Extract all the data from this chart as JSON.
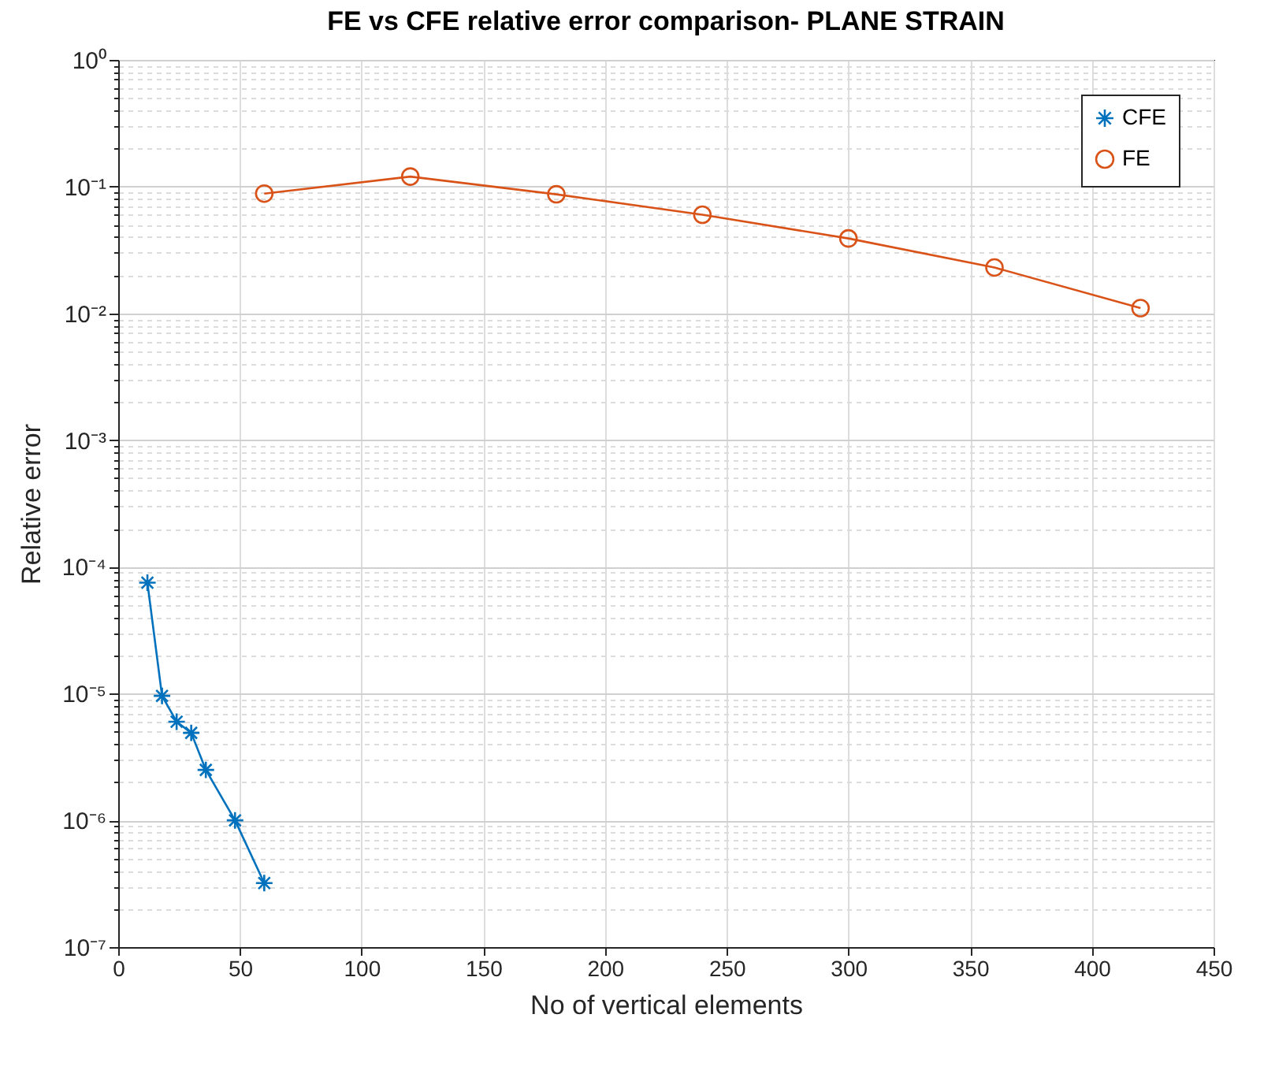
{
  "chart_data": {
    "type": "line",
    "title": "FE vs CFE relative error comparison- PLANE STRAIN",
    "xlabel": "No of vertical elements",
    "ylabel": "Relative error",
    "log": "y",
    "grid": true,
    "legend": "top right",
    "line_style": "solid",
    "xlim": [
      0,
      450
    ],
    "xticks": [
      0,
      50,
      100,
      150,
      200,
      250,
      300,
      350,
      400,
      450
    ],
    "ylim": [
      1e-07,
      1
    ],
    "yticks": [
      {
        "value": 1e-07,
        "label": "10⁻⁷"
      },
      {
        "value": 2e-07,
        "label": null
      },
      {
        "value": 3e-07,
        "label": null
      },
      {
        "value": 4e-07,
        "label": null
      },
      {
        "value": 5e-07,
        "label": null
      },
      {
        "value": 6e-07,
        "label": null
      },
      {
        "value": 7e-07,
        "label": null
      },
      {
        "value": 8e-07,
        "label": null
      },
      {
        "value": 9e-07,
        "label": null
      },
      {
        "value": 1e-06,
        "label": "10⁻⁶"
      },
      {
        "value": 2e-06,
        "label": null
      },
      {
        "value": 3e-06,
        "label": null
      },
      {
        "value": 4e-06,
        "label": null
      },
      {
        "value": 5e-06,
        "label": null
      },
      {
        "value": 6e-06,
        "label": null
      },
      {
        "value": 7e-06,
        "label": null
      },
      {
        "value": 8e-06,
        "label": null
      },
      {
        "value": 9e-06,
        "label": null
      },
      {
        "value": 1e-05,
        "label": "10⁻⁵"
      },
      {
        "value": 2e-05,
        "label": null
      },
      {
        "value": 3e-05,
        "label": null
      },
      {
        "value": 4e-05,
        "label": null
      },
      {
        "value": 5e-05,
        "label": null
      },
      {
        "value": 6e-05,
        "label": null
      },
      {
        "value": 7e-05,
        "label": null
      },
      {
        "value": 8e-05,
        "label": null
      },
      {
        "value": 9e-05,
        "label": null
      },
      {
        "value": 0.0001,
        "label": "10⁻⁴"
      },
      {
        "value": 0.0002,
        "label": null
      },
      {
        "value": 0.0003,
        "label": null
      },
      {
        "value": 0.0004,
        "label": null
      },
      {
        "value": 0.0005,
        "label": null
      },
      {
        "value": 0.0006,
        "label": null
      },
      {
        "value": 0.0007,
        "label": null
      },
      {
        "value": 0.0008,
        "label": null
      },
      {
        "value": 0.0009,
        "label": null
      },
      {
        "value": 0.001,
        "label": "10⁻³"
      },
      {
        "value": 0.002,
        "label": null
      },
      {
        "value": 0.003,
        "label": null
      },
      {
        "value": 0.004,
        "label": null
      },
      {
        "value": 0.005,
        "label": null
      },
      {
        "value": 0.006,
        "label": null
      },
      {
        "value": 0.007,
        "label": null
      },
      {
        "value": 0.008,
        "label": null
      },
      {
        "value": 0.009,
        "label": null
      },
      {
        "value": 0.01,
        "label": "10⁻²"
      },
      {
        "value": 0.02,
        "label": null
      },
      {
        "value": 0.03,
        "label": null
      },
      {
        "value": 0.04,
        "label": null
      },
      {
        "value": 0.05,
        "label": null
      },
      {
        "value": 0.06,
        "label": null
      },
      {
        "value": 0.07,
        "label": null
      },
      {
        "value": 0.08,
        "label": null
      },
      {
        "value": 0.09,
        "label": null
      },
      {
        "value": 0.1,
        "label": "10⁻¹"
      },
      {
        "value": 0.2,
        "label": null
      },
      {
        "value": 0.3,
        "label": null
      },
      {
        "value": 0.4,
        "label": null
      },
      {
        "value": 0.5,
        "label": null
      },
      {
        "value": 0.6,
        "label": null
      },
      {
        "value": 0.7,
        "label": null
      },
      {
        "value": 0.8,
        "label": null
      },
      {
        "value": 0.9,
        "label": null
      },
      {
        "value": 1,
        "label": "10⁰"
      }
    ],
    "series": [
      {
        "name": "CFE",
        "color": "#0072bd",
        "marker": "cross",
        "x": [
          12,
          18,
          24,
          30,
          36,
          48,
          60
        ],
        "values": [
          7.5e-05,
          9.6e-06,
          6e-06,
          4.9e-06,
          2.5e-06,
          1e-06,
          3.2e-07
        ]
      },
      {
        "name": "FE",
        "color": "#d95319",
        "marker": "circle",
        "x": [
          60,
          120,
          180,
          240,
          300,
          360,
          420
        ],
        "values": [
          0.088,
          0.12,
          0.087,
          0.06,
          0.039,
          0.023,
          0.011
        ]
      }
    ]
  }
}
